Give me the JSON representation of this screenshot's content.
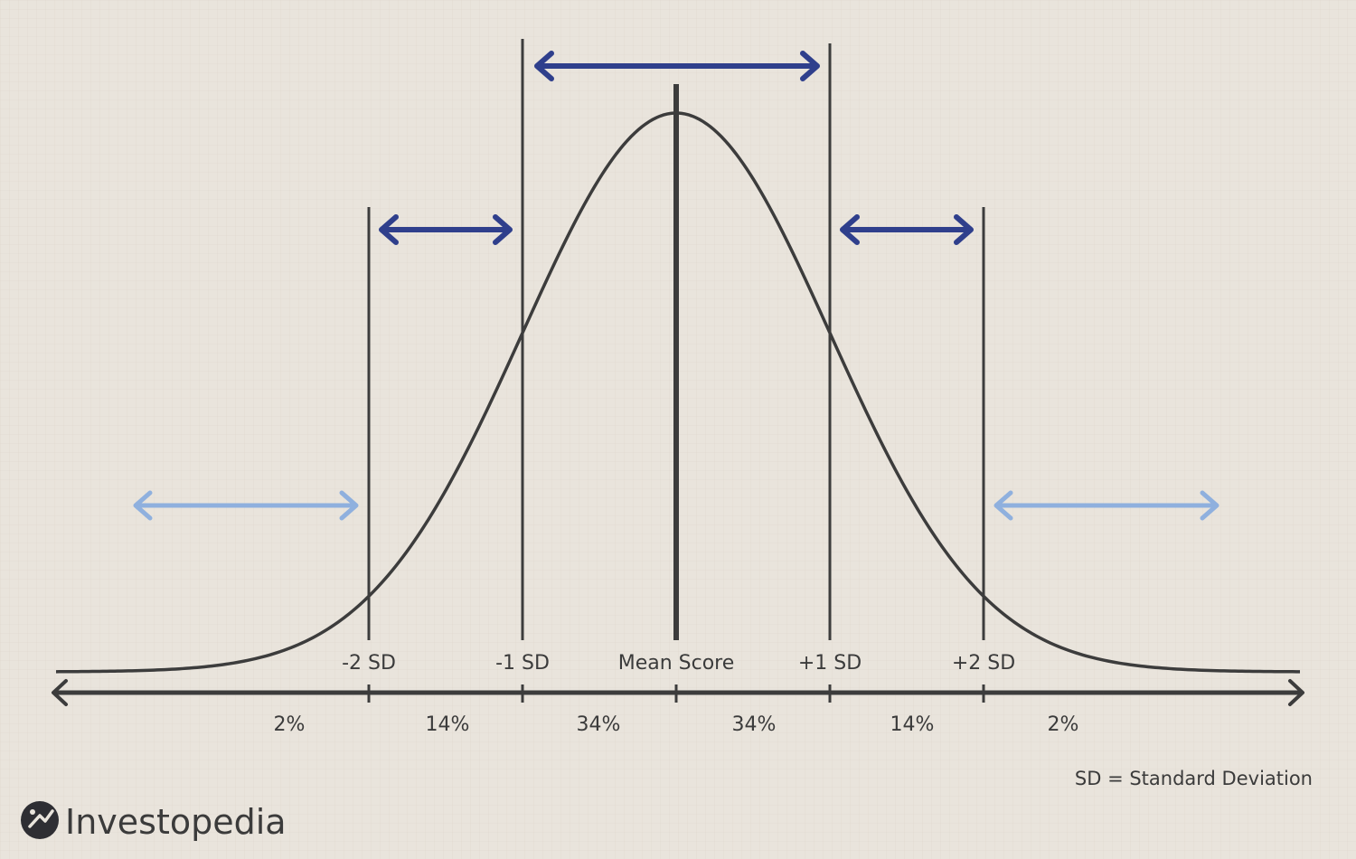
{
  "diagram": {
    "sd_labels": [
      "-2 SD",
      "-1 SD",
      "Mean Score",
      "+1 SD",
      "+2 SD"
    ],
    "region_percentages": [
      "2%",
      "14%",
      "34%",
      "34%",
      "14%",
      "2%"
    ],
    "legend_note": "SD = Standard Deviation"
  },
  "brand": {
    "name": "Investopedia",
    "logo_icon": "investopedia-logo-icon"
  },
  "colors": {
    "background": "#e9e4dc",
    "grid": "#ddd6cc",
    "curve": "#3c3c3c",
    "axis": "#3c3c3c",
    "arrow_dark": "#2f3f8c",
    "arrow_light": "#8fb0de",
    "text": "#3b3b3b"
  }
}
